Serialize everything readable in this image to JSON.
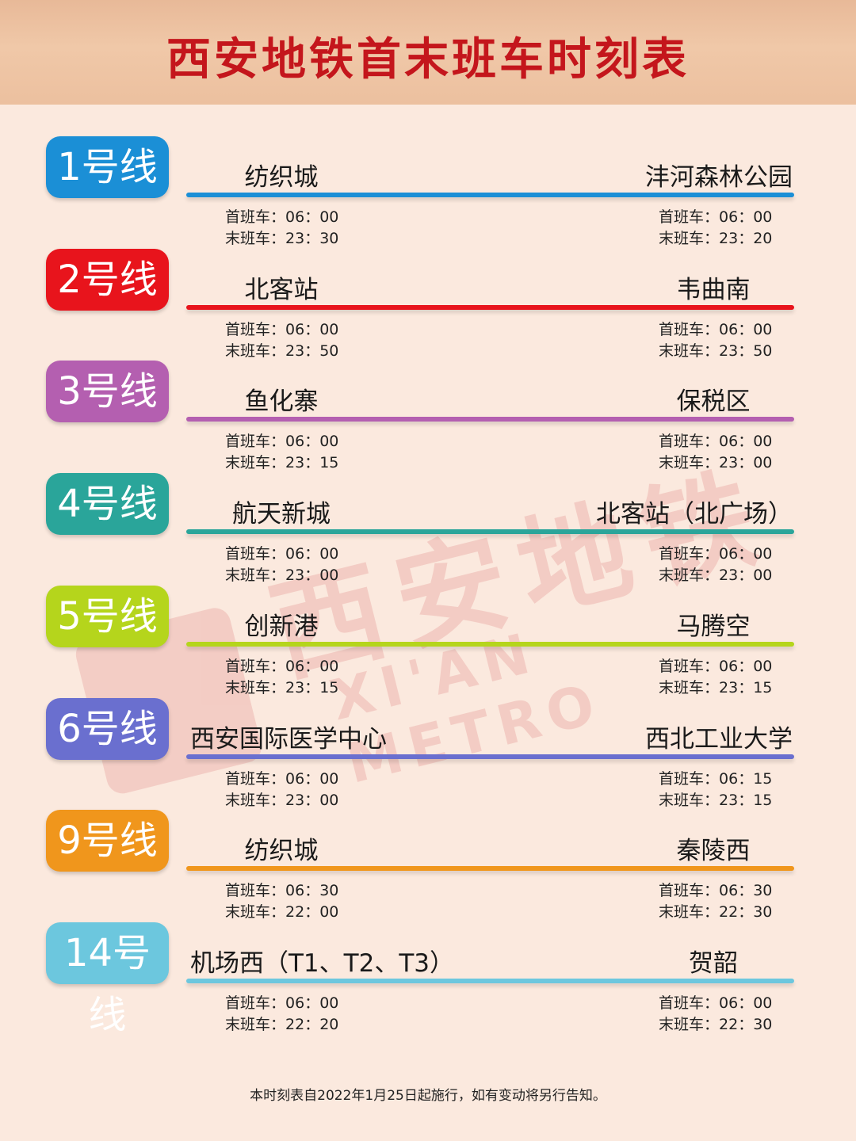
{
  "title": "西安地铁首末班车时刻表",
  "watermark": {
    "cn": "西安地铁",
    "en": "XI'AN METRO"
  },
  "first_label": "首班车：",
  "last_label": "末班车：",
  "lines": [
    {
      "name": "1号线",
      "color": "#1b8fd6",
      "left": {
        "station": "纺织城",
        "first": "06：00",
        "last": "23：30"
      },
      "right": {
        "station": "沣河森林公园",
        "first": "06：00",
        "last": "23：20"
      }
    },
    {
      "name": "2号线",
      "color": "#e8141c",
      "left": {
        "station": "北客站",
        "first": "06：00",
        "last": "23：50"
      },
      "right": {
        "station": "韦曲南",
        "first": "06：00",
        "last": "23：50"
      }
    },
    {
      "name": "3号线",
      "color": "#b45fb0",
      "left": {
        "station": "鱼化寨",
        "first": "06：00",
        "last": "23：15"
      },
      "right": {
        "station": "保税区",
        "first": "06：00",
        "last": "23：00"
      }
    },
    {
      "name": "4号线",
      "color": "#2aa59a",
      "left": {
        "station": "航天新城",
        "first": "06：00",
        "last": "23：00"
      },
      "right": {
        "station": "北客站（北广场）",
        "first": "06：00",
        "last": "23：00"
      }
    },
    {
      "name": "5号线",
      "color": "#b5d51c",
      "left": {
        "station": "创新港",
        "first": "06：00",
        "last": "23：15"
      },
      "right": {
        "station": "马腾空",
        "first": "06：00",
        "last": "23：15"
      }
    },
    {
      "name": "6号线",
      "color": "#6a6fcf",
      "left": {
        "station": "西安国际医学中心",
        "first": "06：00",
        "last": "23：00"
      },
      "right": {
        "station": "西北工业大学",
        "first": "06：15",
        "last": "23：15"
      }
    },
    {
      "name": "9号线",
      "color": "#f0961c",
      "left": {
        "station": "纺织城",
        "first": "06：30",
        "last": "22：00"
      },
      "right": {
        "station": "秦陵西",
        "first": "06：30",
        "last": "22：30"
      }
    },
    {
      "name": "14号线",
      "color": "#6cc7de",
      "left": {
        "station": "机场西（T1、T2、T3）",
        "first": "06：00",
        "last": "22：20"
      },
      "right": {
        "station": "贺韶",
        "first": "06：00",
        "last": "22：30"
      }
    }
  ],
  "footer": "本时刻表自2022年1月25日起施行，如有变动将另行告知。"
}
